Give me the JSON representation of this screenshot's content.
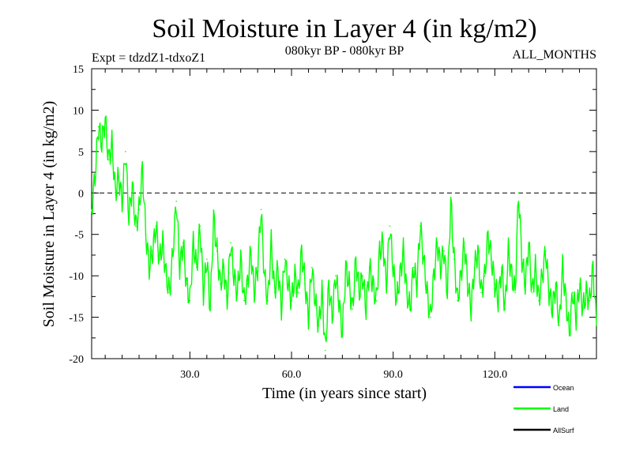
{
  "chart_data": {
    "type": "line",
    "title": "Soil Moisture in Layer 4 (in kg/m2)",
    "subtitle_left": "Expt = tdzdZ1-tdxoZ1",
    "subtitle_center": "080kyr BP - 080kyr BP",
    "subtitle_right": "ALL_MONTHS",
    "xlabel": "Time (in years since start)",
    "ylabel": "Soil Moisture in Layer 4 (in kg/m2)",
    "xlim": [
      1,
      150
    ],
    "ylim": [
      -20,
      15
    ],
    "x_ticks": [
      30,
      60,
      90,
      120
    ],
    "x_tick_labels": [
      "30.0",
      "60.0",
      "90.0",
      "120.0"
    ],
    "y_ticks": [
      15,
      10,
      5,
      0,
      -5,
      -10,
      -15,
      -20
    ],
    "y_tick_labels": [
      "15",
      "10",
      "5",
      "0",
      "-5",
      "-10",
      "-15",
      "-20"
    ],
    "reference_line": 0,
    "legend": [
      {
        "name": "Ocean",
        "color": "#0000ff"
      },
      {
        "name": "Land",
        "color": "#00ff00"
      },
      {
        "name": "AllSurf",
        "color": "#000000"
      }
    ],
    "series": [
      {
        "name": "Land",
        "color": "#00ff00",
        "x": [
          1,
          2,
          3,
          4,
          5,
          6,
          7,
          8,
          9,
          10,
          11,
          12,
          13,
          14,
          15,
          16,
          17,
          18,
          19,
          20,
          21,
          22,
          23,
          24,
          25,
          26,
          27,
          28,
          29,
          30,
          31,
          32,
          33,
          34,
          35,
          36,
          37,
          38,
          39,
          40,
          41,
          42,
          43,
          44,
          45,
          46,
          47,
          48,
          49,
          50,
          51,
          52,
          53,
          54,
          55,
          56,
          57,
          58,
          59,
          60,
          61,
          62,
          63,
          64,
          65,
          66,
          67,
          68,
          69,
          70,
          71,
          72,
          73,
          74,
          75,
          76,
          77,
          78,
          79,
          80,
          81,
          82,
          83,
          84,
          85,
          86,
          87,
          88,
          89,
          90,
          91,
          92,
          93,
          94,
          95,
          96,
          97,
          98,
          99,
          100,
          101,
          102,
          103,
          104,
          105,
          106,
          107,
          108,
          109,
          110,
          111,
          112,
          113,
          114,
          115,
          116,
          117,
          118,
          119,
          120,
          121,
          122,
          123,
          124,
          125,
          126,
          127,
          128,
          129,
          130,
          131,
          132,
          133,
          134,
          135,
          136,
          137,
          138,
          139,
          140,
          141,
          142,
          143,
          144,
          145,
          146,
          147,
          148,
          149,
          150
        ],
        "values": [
          -2,
          2,
          8,
          6,
          9,
          4,
          6,
          0,
          2,
          -1,
          5,
          -3,
          1,
          -4,
          -2,
          3,
          -5,
          -9,
          -7,
          -4,
          -8,
          -6,
          -10,
          -12,
          -7,
          -1,
          -9,
          -6,
          -11,
          -13,
          -6,
          -9,
          -4,
          -12,
          -8,
          -14,
          -3,
          -7,
          -11,
          -9,
          -13,
          -6,
          -10,
          -12,
          -8,
          -13,
          -11,
          -7,
          -12,
          -9,
          -2,
          -10,
          -13,
          -6,
          -12,
          -9,
          -14,
          -8,
          -11,
          -13,
          -10,
          -12,
          -7,
          -11,
          -15,
          -9,
          -13,
          -16,
          -12,
          -19,
          -11,
          -15,
          -10,
          -13,
          -17,
          -9,
          -11,
          -14,
          -8,
          -12,
          -10,
          -14,
          -9,
          -11,
          -13,
          -7,
          -6,
          -11,
          -4,
          -9,
          -13,
          -10,
          -7,
          -12,
          -14,
          -9,
          -11,
          -4,
          -8,
          -12,
          -15,
          -10,
          -6,
          -9,
          -7,
          -12,
          -1,
          -8,
          -13,
          -10,
          -6,
          -11,
          -14,
          -9,
          -7,
          -12,
          -10,
          -5,
          -8,
          -11,
          -13,
          -9,
          -14,
          -7,
          -10,
          -12,
          0,
          -8,
          -11,
          -6,
          -12,
          -9,
          -13,
          -10,
          -7,
          -12,
          -14,
          -11,
          -16,
          -9,
          -13,
          -17,
          -12,
          -15,
          -11,
          -14,
          -12,
          -13,
          -9,
          -16
        ]
      }
    ]
  }
}
